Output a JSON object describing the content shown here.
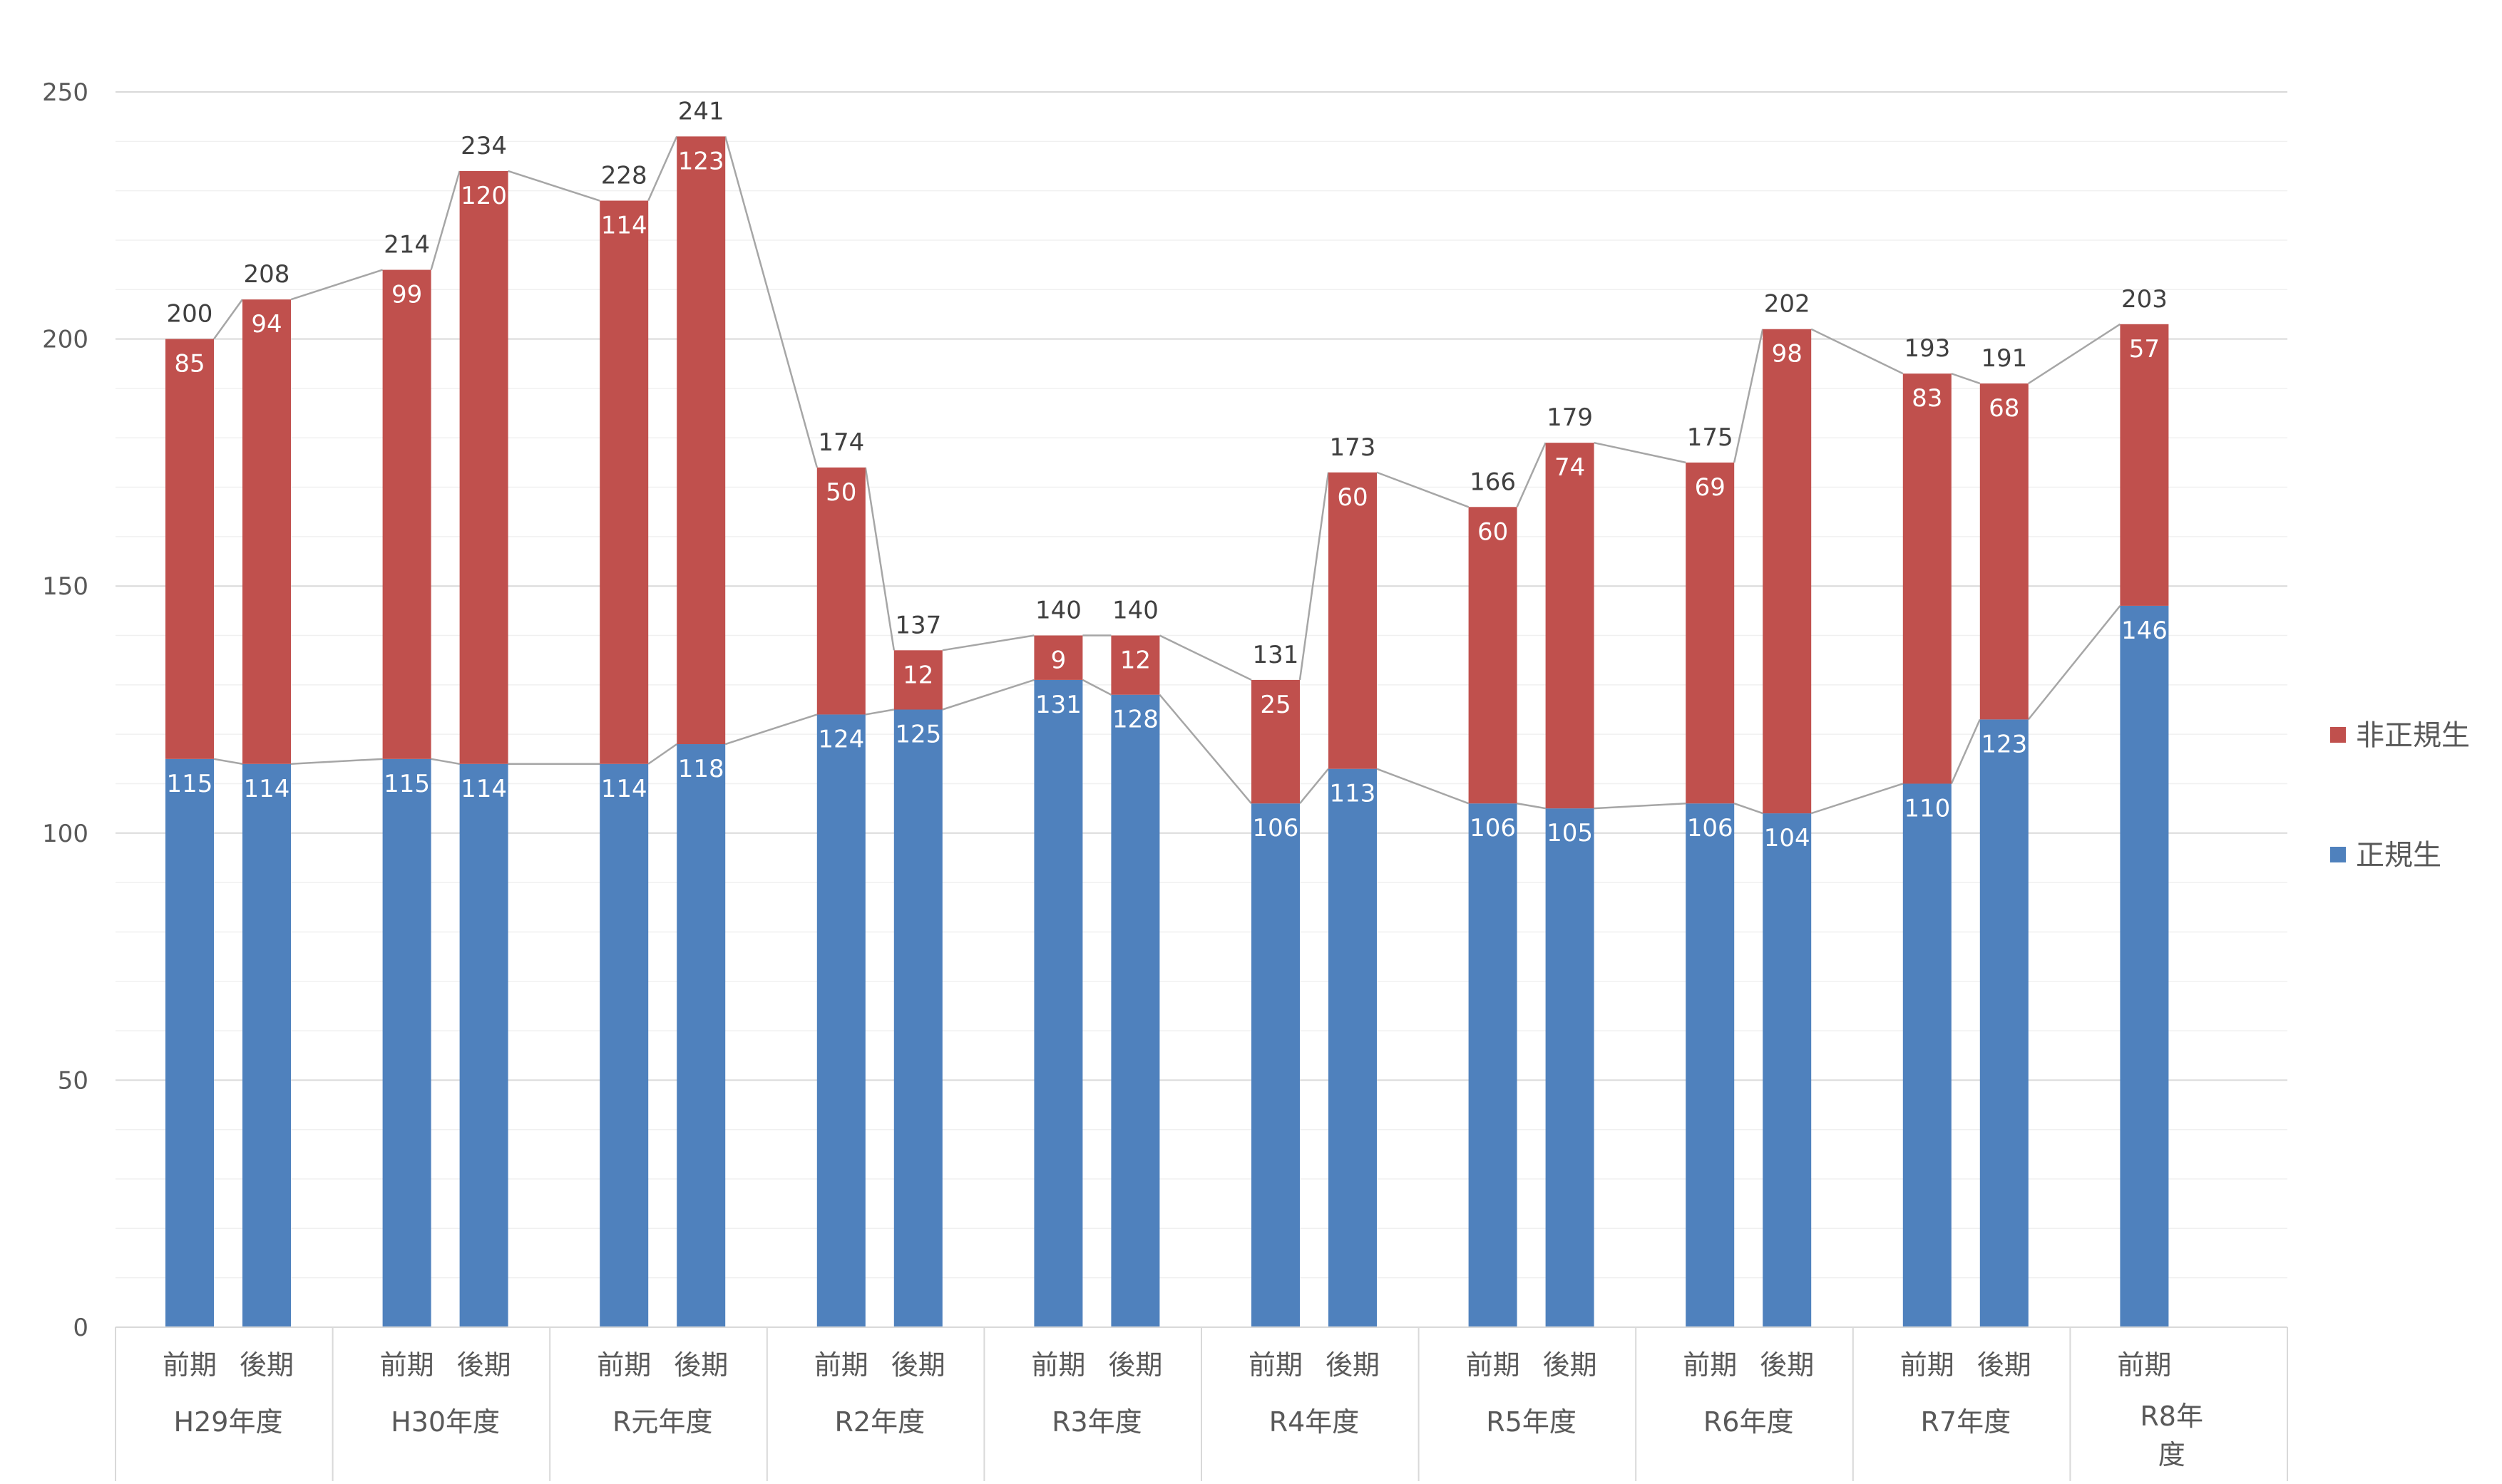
{
  "chart_data": {
    "type": "bar",
    "stacked": true,
    "ylim": [
      0,
      250
    ],
    "yticks": [
      0,
      50,
      100,
      150,
      200,
      250
    ],
    "grid": true,
    "legend_position": "right",
    "categories": [
      {
        "group": "H29年度",
        "period": "前期"
      },
      {
        "group": "H29年度",
        "period": "後期"
      },
      {
        "group": "H30年度",
        "period": "前期"
      },
      {
        "group": "H30年度",
        "period": "後期"
      },
      {
        "group": "R元年度",
        "period": "前期"
      },
      {
        "group": "R元年度",
        "period": "後期"
      },
      {
        "group": "R2年度",
        "period": "前期"
      },
      {
        "group": "R2年度",
        "period": "後期"
      },
      {
        "group": "R3年度",
        "period": "前期"
      },
      {
        "group": "R3年度",
        "period": "後期"
      },
      {
        "group": "R4年度",
        "period": "前期"
      },
      {
        "group": "R4年度",
        "period": "後期"
      },
      {
        "group": "R5年度",
        "period": "前期"
      },
      {
        "group": "R5年度",
        "period": "後期"
      },
      {
        "group": "R6年度",
        "period": "前期"
      },
      {
        "group": "R6年度",
        "period": "後期"
      },
      {
        "group": "R7年度",
        "period": "前期"
      },
      {
        "group": "R7年度",
        "period": "後期"
      },
      {
        "group": "R8年度",
        "period": "前期"
      }
    ],
    "groups": [
      "H29年度",
      "H30年度",
      "R元年度",
      "R2年度",
      "R3年度",
      "R4年度",
      "R5年度",
      "R6年度",
      "R7年度",
      "R8年度"
    ],
    "series": [
      {
        "name": "正規生",
        "color": "#4F81BD",
        "values": [
          115,
          114,
          115,
          114,
          114,
          118,
          124,
          125,
          131,
          128,
          106,
          113,
          106,
          105,
          106,
          104,
          110,
          123,
          146
        ]
      },
      {
        "name": "非正規生",
        "color": "#C0504D",
        "values": [
          85,
          94,
          99,
          120,
          114,
          123,
          50,
          12,
          9,
          12,
          25,
          60,
          60,
          74,
          69,
          98,
          83,
          68,
          57
        ]
      }
    ],
    "totals": [
      200,
      208,
      214,
      234,
      228,
      241,
      174,
      137,
      140,
      140,
      131,
      173,
      166,
      179,
      175,
      202,
      193,
      191,
      203
    ],
    "connector_lines": true,
    "connector_color": "#A6A6A6"
  },
  "legend": {
    "order": [
      "非正規生",
      "正規生"
    ]
  }
}
